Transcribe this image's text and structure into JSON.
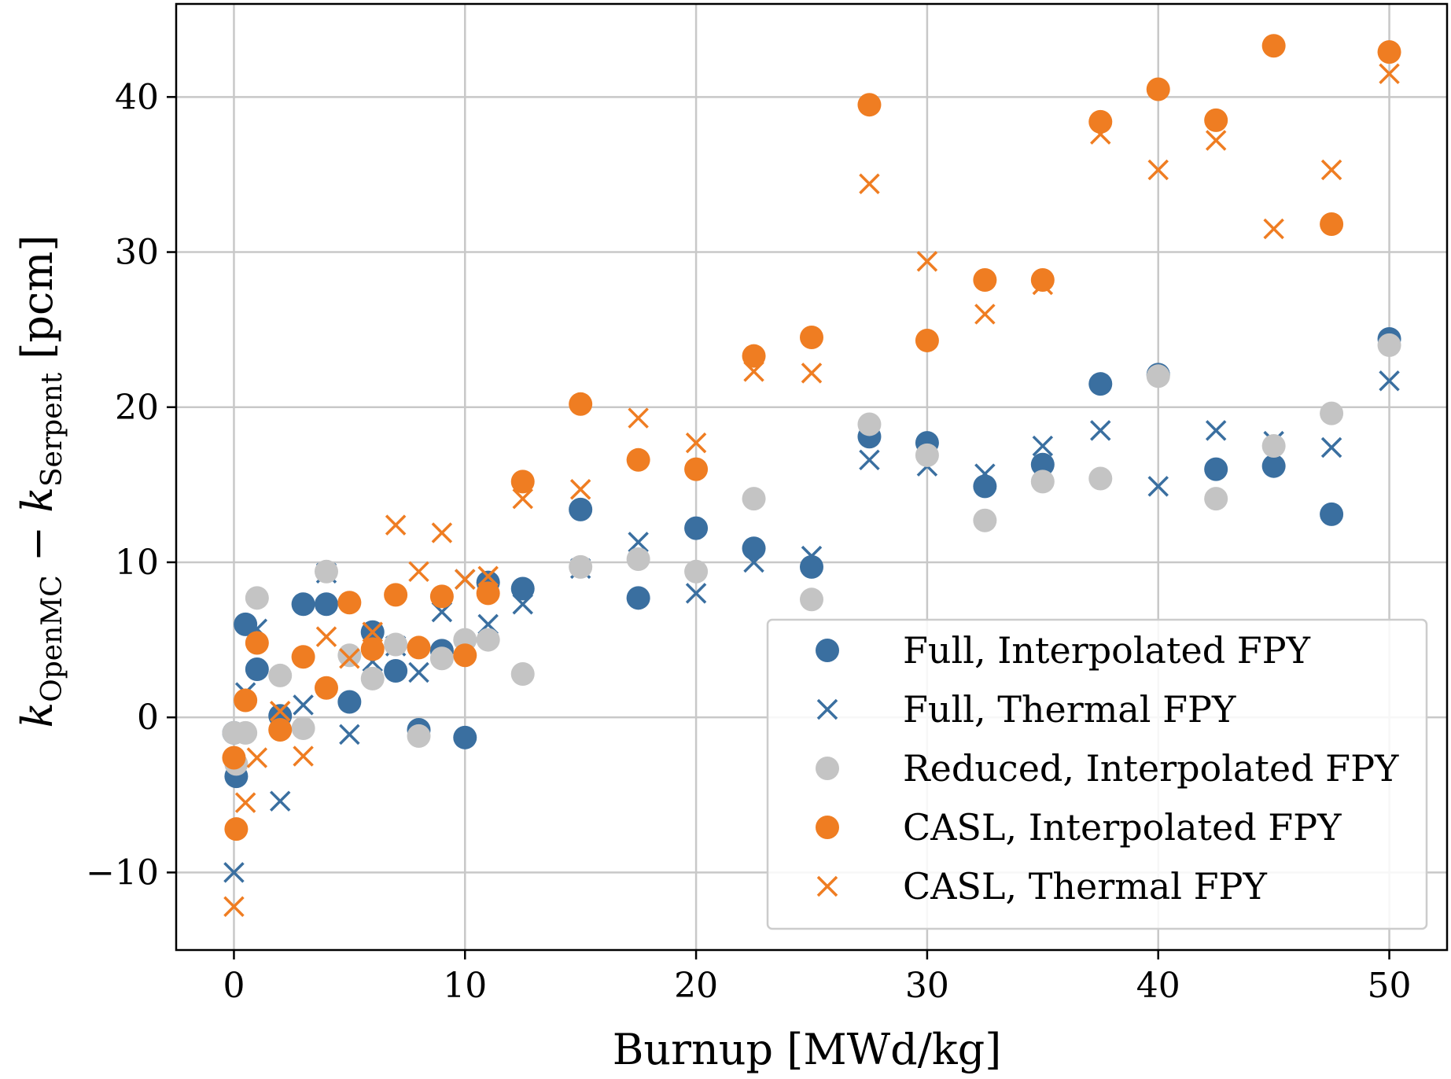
{
  "chart_data": {
    "type": "scatter",
    "xlabel": "Burnup [MWd/kg]",
    "ylabel": {
      "k": "k",
      "sub1": "OpenMC",
      "minus": " − ",
      "sub2": "Serpent",
      "unit": " [pcm]"
    },
    "xlim": [
      -2.5,
      52.5
    ],
    "ylim": [
      -15,
      46
    ],
    "xticks": [
      0,
      10,
      20,
      30,
      40,
      50
    ],
    "yticks": [
      -10,
      0,
      10,
      20,
      30,
      40
    ],
    "xtick_labels": [
      "0",
      "10",
      "20",
      "30",
      "40",
      "50"
    ],
    "ytick_labels": [
      "−10",
      "0",
      "10",
      "20",
      "30",
      "40"
    ],
    "grid": true,
    "legend_position": "lower-right",
    "series": [
      {
        "name": "Full, Interpolated FPY",
        "marker": "circle",
        "color": "#3a6fa0",
        "points": [
          [
            0,
            -1
          ],
          [
            0.1,
            -3.8
          ],
          [
            0.5,
            6
          ],
          [
            1,
            3.1
          ],
          [
            2,
            0.1
          ],
          [
            3,
            7.3
          ],
          [
            4,
            7.3
          ],
          [
            5,
            1
          ],
          [
            6,
            5.5
          ],
          [
            7,
            3
          ],
          [
            8,
            -0.8
          ],
          [
            9,
            4.3
          ],
          [
            10,
            -1.3
          ],
          [
            11,
            8.7
          ],
          [
            12.5,
            8.3
          ],
          [
            15,
            13.4
          ],
          [
            17.5,
            7.7
          ],
          [
            20,
            12.2
          ],
          [
            22.5,
            10.9
          ],
          [
            25,
            9.7
          ],
          [
            27.5,
            18.1
          ],
          [
            30,
            17.7
          ],
          [
            32.5,
            14.9
          ],
          [
            35,
            16.3
          ],
          [
            37.5,
            21.5
          ],
          [
            40,
            22.1
          ],
          [
            42.5,
            16
          ],
          [
            45,
            16.2
          ],
          [
            47.5,
            13.1
          ],
          [
            50,
            24.4
          ]
        ]
      },
      {
        "name": "Full, Thermal FPY",
        "marker": "x",
        "color": "#3a6fa0",
        "points": [
          [
            0,
            -10
          ],
          [
            0.5,
            1.6
          ],
          [
            1,
            5.7
          ],
          [
            2,
            -5.4
          ],
          [
            3,
            0.8
          ],
          [
            4,
            9.3
          ],
          [
            5,
            -1.1
          ],
          [
            6,
            3.6
          ],
          [
            7,
            4.6
          ],
          [
            8,
            2.9
          ],
          [
            9,
            6.8
          ],
          [
            10,
            8.9
          ],
          [
            11,
            6
          ],
          [
            12.5,
            7.3
          ],
          [
            15,
            9.6
          ],
          [
            17.5,
            11.3
          ],
          [
            20,
            8
          ],
          [
            22.5,
            10
          ],
          [
            25,
            10.4
          ],
          [
            27.5,
            16.6
          ],
          [
            30,
            16.2
          ],
          [
            32.5,
            15.7
          ],
          [
            35,
            17.5
          ],
          [
            37.5,
            18.5
          ],
          [
            40,
            14.9
          ],
          [
            42.5,
            18.5
          ],
          [
            45,
            17.8
          ],
          [
            47.5,
            17.4
          ],
          [
            50,
            21.7
          ]
        ]
      },
      {
        "name": "Reduced, Interpolated FPY",
        "marker": "circle",
        "color": "#c4c4c4",
        "points": [
          [
            0,
            -1
          ],
          [
            0.1,
            -3
          ],
          [
            0.5,
            -1
          ],
          [
            1,
            7.7
          ],
          [
            2,
            2.7
          ],
          [
            3,
            -0.7
          ],
          [
            4,
            9.4
          ],
          [
            5,
            4
          ],
          [
            6,
            2.5
          ],
          [
            7,
            4.7
          ],
          [
            8,
            -1.2
          ],
          [
            9,
            3.8
          ],
          [
            10,
            5
          ],
          [
            11,
            5
          ],
          [
            12.5,
            2.8
          ],
          [
            15,
            9.7
          ],
          [
            17.5,
            10.2
          ],
          [
            20,
            9.4
          ],
          [
            22.5,
            14.1
          ],
          [
            25,
            7.6
          ],
          [
            27.5,
            18.9
          ],
          [
            30,
            16.9
          ],
          [
            32.5,
            12.7
          ],
          [
            35,
            15.2
          ],
          [
            37.5,
            15.4
          ],
          [
            40,
            22
          ],
          [
            42.5,
            14.1
          ],
          [
            45,
            17.5
          ],
          [
            47.5,
            19.6
          ],
          [
            50,
            24
          ]
        ]
      },
      {
        "name": "CASL, Interpolated FPY",
        "marker": "circle",
        "color": "#ef7d22",
        "points": [
          [
            0,
            -2.6
          ],
          [
            0.1,
            -7.2
          ],
          [
            0.5,
            1.1
          ],
          [
            1,
            4.8
          ],
          [
            2,
            -0.8
          ],
          [
            3,
            3.9
          ],
          [
            4,
            1.9
          ],
          [
            5,
            7.4
          ],
          [
            6,
            4.4
          ],
          [
            7,
            7.9
          ],
          [
            8,
            4.5
          ],
          [
            9,
            7.8
          ],
          [
            10,
            4
          ],
          [
            11,
            8
          ],
          [
            12.5,
            15.2
          ],
          [
            15,
            20.2
          ],
          [
            17.5,
            16.6
          ],
          [
            20,
            16
          ],
          [
            22.5,
            23.3
          ],
          [
            25,
            24.5
          ],
          [
            27.5,
            39.5
          ],
          [
            30,
            24.3
          ],
          [
            32.5,
            28.2
          ],
          [
            35,
            28.2
          ],
          [
            37.5,
            38.4
          ],
          [
            40,
            40.5
          ],
          [
            42.5,
            38.5
          ],
          [
            45,
            43.3
          ],
          [
            47.5,
            31.8
          ],
          [
            50,
            42.9
          ]
        ]
      },
      {
        "name": "CASL, Thermal FPY",
        "marker": "x",
        "color": "#ef7d22",
        "points": [
          [
            0,
            -12.2
          ],
          [
            0.5,
            -5.5
          ],
          [
            1,
            -2.6
          ],
          [
            2,
            0.4
          ],
          [
            3,
            -2.5
          ],
          [
            4,
            5.2
          ],
          [
            5,
            3.8
          ],
          [
            6,
            5.5
          ],
          [
            7,
            12.4
          ],
          [
            8,
            9.4
          ],
          [
            9,
            11.9
          ],
          [
            10,
            8.9
          ],
          [
            11,
            9.1
          ],
          [
            12.5,
            14.1
          ],
          [
            15,
            14.7
          ],
          [
            17.5,
            19.3
          ],
          [
            20,
            17.7
          ],
          [
            22.5,
            22.3
          ],
          [
            25,
            22.2
          ],
          [
            27.5,
            34.4
          ],
          [
            30,
            29.4
          ],
          [
            32.5,
            26
          ],
          [
            35,
            27.9
          ],
          [
            37.5,
            37.6
          ],
          [
            40,
            35.3
          ],
          [
            42.5,
            37.2
          ],
          [
            45,
            31.5
          ],
          [
            47.5,
            35.3
          ],
          [
            50,
            41.5
          ]
        ]
      }
    ]
  }
}
